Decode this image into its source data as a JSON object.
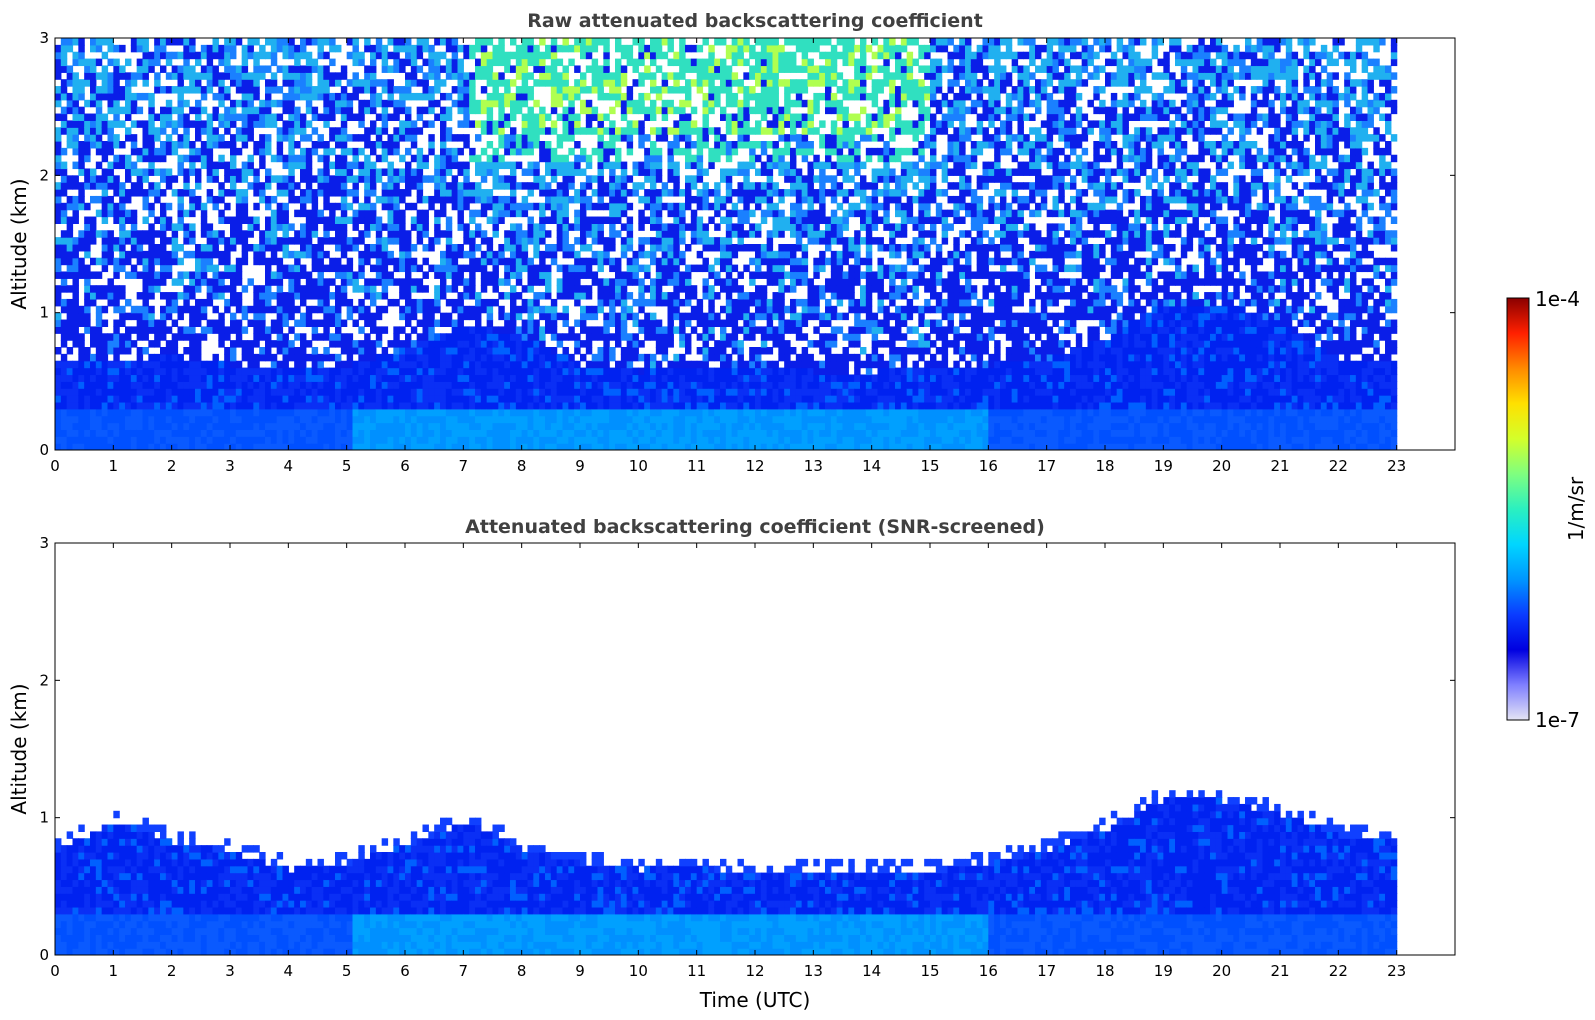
{
  "chart_data": [
    {
      "type": "heatmap",
      "title": "Raw attenuated backscattering coefficient",
      "ylabel": "Altitude (km)",
      "xlabel": "",
      "xlim": [
        0,
        24
      ],
      "ylim": [
        0,
        3
      ],
      "x_ticks": [
        "0",
        "1",
        "2",
        "3",
        "4",
        "5",
        "6",
        "7",
        "8",
        "9",
        "10",
        "11",
        "12",
        "13",
        "14",
        "15",
        "16",
        "17",
        "18",
        "19",
        "20",
        "21",
        "22",
        "23"
      ],
      "y_ticks": [
        "0",
        "1",
        "2",
        "3"
      ],
      "data_extent_hours": [
        0,
        23
      ],
      "noise_floor_km": [
        0.62,
        0.64,
        0.66,
        0.6,
        0.58,
        0.6,
        0.72,
        0.9,
        0.8,
        0.6,
        0.55,
        0.6,
        0.6,
        0.55,
        0.55,
        0.6,
        0.6,
        0.65,
        0.8,
        1.05,
        1.05,
        0.9,
        0.65,
        0.65
      ],
      "colorscale": "jet",
      "log_scale": true
    },
    {
      "type": "heatmap",
      "title": "Attenuated backscattering coefficient (SNR-screened)",
      "ylabel": "Altitude (km)",
      "xlabel": "Time (UTC)",
      "xlim": [
        0,
        24
      ],
      "ylim": [
        0,
        3
      ],
      "x_ticks": [
        "0",
        "1",
        "2",
        "3",
        "4",
        "5",
        "6",
        "7",
        "8",
        "9",
        "10",
        "11",
        "12",
        "13",
        "14",
        "15",
        "16",
        "17",
        "18",
        "19",
        "20",
        "21",
        "22",
        "23"
      ],
      "y_ticks": [
        "0",
        "1",
        "2",
        "3"
      ],
      "data_extent_hours": [
        0,
        23
      ],
      "layer_top_km": [
        0.75,
        0.95,
        0.8,
        0.72,
        0.6,
        0.65,
        0.78,
        0.95,
        0.75,
        0.65,
        0.6,
        0.62,
        0.55,
        0.6,
        0.6,
        0.58,
        0.65,
        0.75,
        0.9,
        1.12,
        1.1,
        1.0,
        0.85,
        0.8
      ],
      "colorscale": "jet",
      "log_scale": true
    }
  ],
  "colorbar": {
    "label": "1/m/sr",
    "max_label": "1e-4",
    "min_label": "1e-7"
  },
  "colors": {
    "colorscale_stops": [
      "#e4e4f4",
      "#7f7fff",
      "#0000e0",
      "#0a3cff",
      "#0096ff",
      "#00d6ff",
      "#2bf0c0",
      "#7fff7f",
      "#d4ff2a",
      "#ffe000",
      "#ff8a00",
      "#ff2000",
      "#8b0000"
    ]
  }
}
